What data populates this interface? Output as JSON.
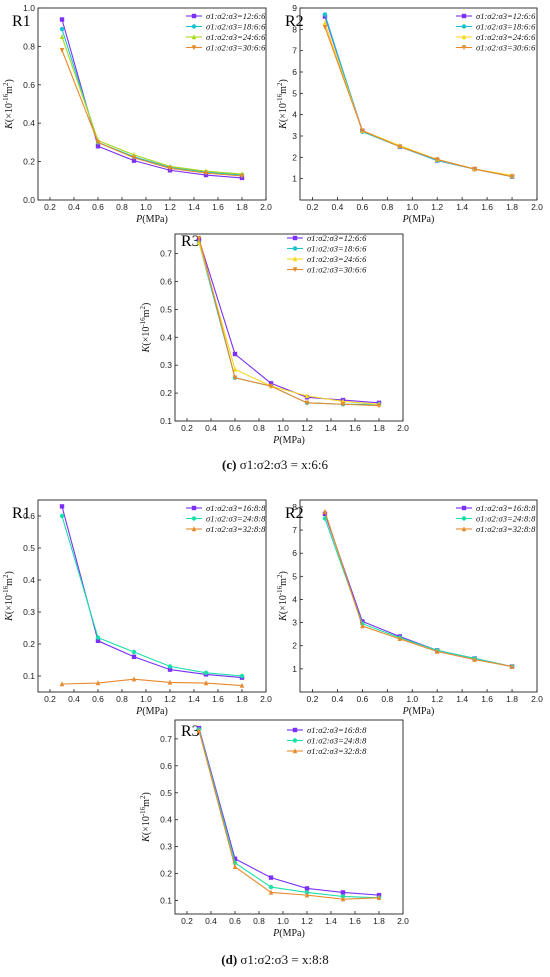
{
  "captions": [
    {
      "tag": "(c)",
      "text": "σ1:σ2:σ3 = x:6:6"
    },
    {
      "tag": "(d)",
      "text": "σ1:σ2:σ3 = x:8:8"
    }
  ],
  "series_colors": [
    "#7b2ff7",
    "#19c2cf",
    "#f5d81a",
    "#e8892b",
    "#f0892b"
  ],
  "chart_data": [
    {
      "type": "line",
      "panel": "R1",
      "group": "(c)",
      "xlabel": "P(MPa)",
      "ylabel": "K(×10-16m2)",
      "xlim": [
        0.1,
        2.0
      ],
      "ylim": [
        0.0,
        1.0
      ],
      "xticks": [
        0.2,
        0.4,
        0.6,
        0.8,
        1.0,
        1.2,
        1.4,
        1.6,
        1.8,
        2.0
      ],
      "yticks": [
        0.0,
        0.2,
        0.4,
        0.6,
        0.8,
        1.0
      ],
      "legend": "top-right",
      "x": [
        0.3,
        0.6,
        0.9,
        1.2,
        1.5,
        1.8
      ],
      "series": [
        {
          "name": "σ1:σ2:σ3=12:6:6",
          "color": "#7b2ff7",
          "values": [
            0.94,
            0.28,
            0.205,
            0.155,
            0.13,
            0.115
          ]
        },
        {
          "name": "σ1:σ2:σ3=18:6:6",
          "color": "#19c2cf",
          "values": [
            0.89,
            0.3,
            0.225,
            0.17,
            0.145,
            0.13
          ]
        },
        {
          "name": "σ1:σ2:σ3=24:6:6",
          "color": "#a6d81a",
          "values": [
            0.85,
            0.31,
            0.235,
            0.175,
            0.15,
            0.135
          ]
        },
        {
          "name": "σ1:σ2:σ3=30:6:6",
          "color": "#e8892b",
          "values": [
            0.78,
            0.3,
            0.22,
            0.165,
            0.14,
            0.125
          ]
        }
      ]
    },
    {
      "type": "line",
      "panel": "R2",
      "group": "(c)",
      "xlabel": "P(MPa)",
      "ylabel": "K(×10-16m2)",
      "xlim": [
        0.1,
        2.0
      ],
      "ylim": [
        0.0,
        9.0
      ],
      "xticks": [
        0.2,
        0.4,
        0.6,
        0.8,
        1.0,
        1.2,
        1.4,
        1.6,
        1.8,
        2.0
      ],
      "yticks": [
        1,
        2,
        3,
        4,
        5,
        6,
        7,
        8,
        9
      ],
      "legend": "top-right",
      "x": [
        0.3,
        0.6,
        0.9,
        1.2,
        1.5,
        1.8
      ],
      "series": [
        {
          "name": "σ1:σ2:σ3=12:6:6",
          "color": "#7b2ff7",
          "values": [
            8.6,
            3.25,
            2.5,
            1.85,
            1.45,
            1.1
          ]
        },
        {
          "name": "σ1:σ2:σ3=18:6:6",
          "color": "#19c2cf",
          "values": [
            8.7,
            3.2,
            2.5,
            1.85,
            1.45,
            1.1
          ]
        },
        {
          "name": "σ1:σ2:σ3=24:6:6",
          "color": "#f5d81a",
          "values": [
            8.3,
            3.25,
            2.55,
            1.9,
            1.45,
            1.15
          ]
        },
        {
          "name": "σ1:σ2:σ3=30:6:6",
          "color": "#e8892b",
          "values": [
            8.1,
            3.25,
            2.5,
            1.9,
            1.45,
            1.1
          ]
        }
      ]
    },
    {
      "type": "line",
      "panel": "R3",
      "group": "(c)",
      "xlabel": "P(MPa)",
      "ylabel": "K(×10-16m2)",
      "xlim": [
        0.1,
        2.0
      ],
      "ylim": [
        0.1,
        0.77
      ],
      "xticks": [
        0.2,
        0.4,
        0.6,
        0.8,
        1.0,
        1.2,
        1.4,
        1.6,
        1.8,
        2.0
      ],
      "yticks": [
        0.1,
        0.2,
        0.3,
        0.4,
        0.5,
        0.6,
        0.7
      ],
      "legend": "top-right",
      "x": [
        0.3,
        0.6,
        0.9,
        1.2,
        1.5,
        1.8
      ],
      "series": [
        {
          "name": "σ1:σ2:σ3=12:6:6",
          "color": "#7b2ff7",
          "values": [
            0.75,
            0.34,
            0.235,
            0.185,
            0.175,
            0.165
          ]
        },
        {
          "name": "σ1:σ2:σ3=18:6:6",
          "color": "#19c2cf",
          "values": [
            0.74,
            0.255,
            0.225,
            0.165,
            0.16,
            0.16
          ]
        },
        {
          "name": "σ1:σ2:σ3=24:6:6",
          "color": "#f5d81a",
          "values": [
            0.74,
            0.285,
            0.225,
            0.19,
            0.17,
            0.16
          ]
        },
        {
          "name": "σ1:σ2:σ3=30:6:6",
          "color": "#e8892b",
          "values": [
            0.755,
            0.255,
            0.225,
            0.165,
            0.16,
            0.155
          ]
        }
      ]
    },
    {
      "type": "line",
      "panel": "R1",
      "group": "(d)",
      "xlabel": "P(MPa)",
      "ylabel": "K(×10-16m2)",
      "xlim": [
        0.1,
        2.0
      ],
      "ylim": [
        0.05,
        0.65
      ],
      "xticks": [
        0.2,
        0.4,
        0.6,
        0.8,
        1.0,
        1.2,
        1.4,
        1.6,
        1.8,
        2.0
      ],
      "yticks": [
        0.1,
        0.2,
        0.3,
        0.4,
        0.5,
        0.6
      ],
      "legend": "top-right",
      "x": [
        0.3,
        0.6,
        0.9,
        1.2,
        1.5,
        1.8
      ],
      "series": [
        {
          "name": "σ1:σ2:σ3=16:8:8",
          "color": "#7b2ff7",
          "values": [
            0.63,
            0.21,
            0.16,
            0.12,
            0.105,
            0.095
          ]
        },
        {
          "name": "σ1:σ2:σ3=24:8:8",
          "color": "#19e0a8",
          "values": [
            0.6,
            0.22,
            0.175,
            0.13,
            0.11,
            0.1
          ]
        },
        {
          "name": "σ1:σ2:σ3=32:8:8",
          "color": "#e8892b",
          "values": [
            0.075,
            0.078,
            0.09,
            0.08,
            0.078,
            0.07
          ]
        }
      ]
    },
    {
      "type": "line",
      "panel": "R2",
      "group": "(d)",
      "xlabel": "P(MPa)",
      "ylabel": "K(×10-16m2)",
      "xlim": [
        0.1,
        2.0
      ],
      "ylim": [
        0.0,
        8.3
      ],
      "xticks": [
        0.2,
        0.4,
        0.6,
        0.8,
        1.0,
        1.2,
        1.4,
        1.6,
        1.8,
        2.0
      ],
      "yticks": [
        1,
        2,
        3,
        4,
        5,
        6,
        7,
        8
      ],
      "legend": "top-right",
      "x": [
        0.3,
        0.6,
        0.9,
        1.2,
        1.5,
        1.8
      ],
      "series": [
        {
          "name": "σ1:σ2:σ3=16:8:8",
          "color": "#7b2ff7",
          "values": [
            7.7,
            3.05,
            2.4,
            1.8,
            1.45,
            1.1
          ]
        },
        {
          "name": "σ1:σ2:σ3=24:8:8",
          "color": "#19e0a8",
          "values": [
            7.5,
            2.95,
            2.35,
            1.8,
            1.45,
            1.1
          ]
        },
        {
          "name": "σ1:σ2:σ3=32:8:8",
          "color": "#e8892b",
          "values": [
            7.8,
            2.85,
            2.3,
            1.75,
            1.4,
            1.1
          ]
        }
      ]
    },
    {
      "type": "line",
      "panel": "R3",
      "group": "(d)",
      "xlabel": "P(MPa)",
      "ylabel": "K(×10-16m2)",
      "xlim": [
        0.1,
        2.0
      ],
      "ylim": [
        0.05,
        0.77
      ],
      "xticks": [
        0.2,
        0.4,
        0.6,
        0.8,
        1.0,
        1.2,
        1.4,
        1.6,
        1.8,
        2.0
      ],
      "yticks": [
        0.1,
        0.2,
        0.3,
        0.4,
        0.5,
        0.6,
        0.7
      ],
      "legend": "top-right",
      "x": [
        0.3,
        0.6,
        0.9,
        1.2,
        1.5,
        1.8
      ],
      "series": [
        {
          "name": "σ1:σ2:σ3=16:8:8",
          "color": "#7b2ff7",
          "values": [
            0.74,
            0.255,
            0.185,
            0.145,
            0.13,
            0.12
          ]
        },
        {
          "name": "σ1:σ2:σ3=24:8:8",
          "color": "#19e0a8",
          "values": [
            0.735,
            0.24,
            0.15,
            0.13,
            0.115,
            0.11
          ]
        },
        {
          "name": "σ1:σ2:σ3=32:8:8",
          "color": "#e8892b",
          "values": [
            0.73,
            0.225,
            0.13,
            0.12,
            0.105,
            0.11
          ]
        }
      ]
    }
  ]
}
